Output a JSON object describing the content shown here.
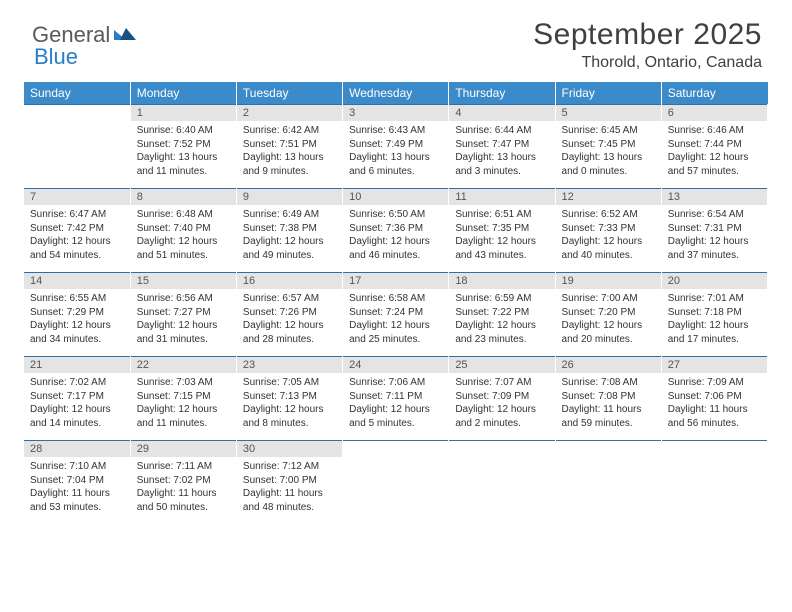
{
  "brand": {
    "part1": "General",
    "part2": "Blue"
  },
  "title": "September 2025",
  "location": "Thorold, Ontario, Canada",
  "colors": {
    "header_bg": "#3b8bca",
    "header_text": "#ffffff",
    "daynum_bg": "#e4e4e4",
    "daynum_text": "#555555",
    "row_border": "#2e6fa8",
    "body_text": "#333333",
    "title_text": "#404040"
  },
  "day_headers": [
    "Sunday",
    "Monday",
    "Tuesday",
    "Wednesday",
    "Thursday",
    "Friday",
    "Saturday"
  ],
  "weeks": [
    [
      null,
      {
        "n": "1",
        "sr": "Sunrise: 6:40 AM",
        "ss": "Sunset: 7:52 PM",
        "dl": "Daylight: 13 hours and 11 minutes."
      },
      {
        "n": "2",
        "sr": "Sunrise: 6:42 AM",
        "ss": "Sunset: 7:51 PM",
        "dl": "Daylight: 13 hours and 9 minutes."
      },
      {
        "n": "3",
        "sr": "Sunrise: 6:43 AM",
        "ss": "Sunset: 7:49 PM",
        "dl": "Daylight: 13 hours and 6 minutes."
      },
      {
        "n": "4",
        "sr": "Sunrise: 6:44 AM",
        "ss": "Sunset: 7:47 PM",
        "dl": "Daylight: 13 hours and 3 minutes."
      },
      {
        "n": "5",
        "sr": "Sunrise: 6:45 AM",
        "ss": "Sunset: 7:45 PM",
        "dl": "Daylight: 13 hours and 0 minutes."
      },
      {
        "n": "6",
        "sr": "Sunrise: 6:46 AM",
        "ss": "Sunset: 7:44 PM",
        "dl": "Daylight: 12 hours and 57 minutes."
      }
    ],
    [
      {
        "n": "7",
        "sr": "Sunrise: 6:47 AM",
        "ss": "Sunset: 7:42 PM",
        "dl": "Daylight: 12 hours and 54 minutes."
      },
      {
        "n": "8",
        "sr": "Sunrise: 6:48 AM",
        "ss": "Sunset: 7:40 PM",
        "dl": "Daylight: 12 hours and 51 minutes."
      },
      {
        "n": "9",
        "sr": "Sunrise: 6:49 AM",
        "ss": "Sunset: 7:38 PM",
        "dl": "Daylight: 12 hours and 49 minutes."
      },
      {
        "n": "10",
        "sr": "Sunrise: 6:50 AM",
        "ss": "Sunset: 7:36 PM",
        "dl": "Daylight: 12 hours and 46 minutes."
      },
      {
        "n": "11",
        "sr": "Sunrise: 6:51 AM",
        "ss": "Sunset: 7:35 PM",
        "dl": "Daylight: 12 hours and 43 minutes."
      },
      {
        "n": "12",
        "sr": "Sunrise: 6:52 AM",
        "ss": "Sunset: 7:33 PM",
        "dl": "Daylight: 12 hours and 40 minutes."
      },
      {
        "n": "13",
        "sr": "Sunrise: 6:54 AM",
        "ss": "Sunset: 7:31 PM",
        "dl": "Daylight: 12 hours and 37 minutes."
      }
    ],
    [
      {
        "n": "14",
        "sr": "Sunrise: 6:55 AM",
        "ss": "Sunset: 7:29 PM",
        "dl": "Daylight: 12 hours and 34 minutes."
      },
      {
        "n": "15",
        "sr": "Sunrise: 6:56 AM",
        "ss": "Sunset: 7:27 PM",
        "dl": "Daylight: 12 hours and 31 minutes."
      },
      {
        "n": "16",
        "sr": "Sunrise: 6:57 AM",
        "ss": "Sunset: 7:26 PM",
        "dl": "Daylight: 12 hours and 28 minutes."
      },
      {
        "n": "17",
        "sr": "Sunrise: 6:58 AM",
        "ss": "Sunset: 7:24 PM",
        "dl": "Daylight: 12 hours and 25 minutes."
      },
      {
        "n": "18",
        "sr": "Sunrise: 6:59 AM",
        "ss": "Sunset: 7:22 PM",
        "dl": "Daylight: 12 hours and 23 minutes."
      },
      {
        "n": "19",
        "sr": "Sunrise: 7:00 AM",
        "ss": "Sunset: 7:20 PM",
        "dl": "Daylight: 12 hours and 20 minutes."
      },
      {
        "n": "20",
        "sr": "Sunrise: 7:01 AM",
        "ss": "Sunset: 7:18 PM",
        "dl": "Daylight: 12 hours and 17 minutes."
      }
    ],
    [
      {
        "n": "21",
        "sr": "Sunrise: 7:02 AM",
        "ss": "Sunset: 7:17 PM",
        "dl": "Daylight: 12 hours and 14 minutes."
      },
      {
        "n": "22",
        "sr": "Sunrise: 7:03 AM",
        "ss": "Sunset: 7:15 PM",
        "dl": "Daylight: 12 hours and 11 minutes."
      },
      {
        "n": "23",
        "sr": "Sunrise: 7:05 AM",
        "ss": "Sunset: 7:13 PM",
        "dl": "Daylight: 12 hours and 8 minutes."
      },
      {
        "n": "24",
        "sr": "Sunrise: 7:06 AM",
        "ss": "Sunset: 7:11 PM",
        "dl": "Daylight: 12 hours and 5 minutes."
      },
      {
        "n": "25",
        "sr": "Sunrise: 7:07 AM",
        "ss": "Sunset: 7:09 PM",
        "dl": "Daylight: 12 hours and 2 minutes."
      },
      {
        "n": "26",
        "sr": "Sunrise: 7:08 AM",
        "ss": "Sunset: 7:08 PM",
        "dl": "Daylight: 11 hours and 59 minutes."
      },
      {
        "n": "27",
        "sr": "Sunrise: 7:09 AM",
        "ss": "Sunset: 7:06 PM",
        "dl": "Daylight: 11 hours and 56 minutes."
      }
    ],
    [
      {
        "n": "28",
        "sr": "Sunrise: 7:10 AM",
        "ss": "Sunset: 7:04 PM",
        "dl": "Daylight: 11 hours and 53 minutes."
      },
      {
        "n": "29",
        "sr": "Sunrise: 7:11 AM",
        "ss": "Sunset: 7:02 PM",
        "dl": "Daylight: 11 hours and 50 minutes."
      },
      {
        "n": "30",
        "sr": "Sunrise: 7:12 AM",
        "ss": "Sunset: 7:00 PM",
        "dl": "Daylight: 11 hours and 48 minutes."
      },
      null,
      null,
      null,
      null
    ]
  ]
}
